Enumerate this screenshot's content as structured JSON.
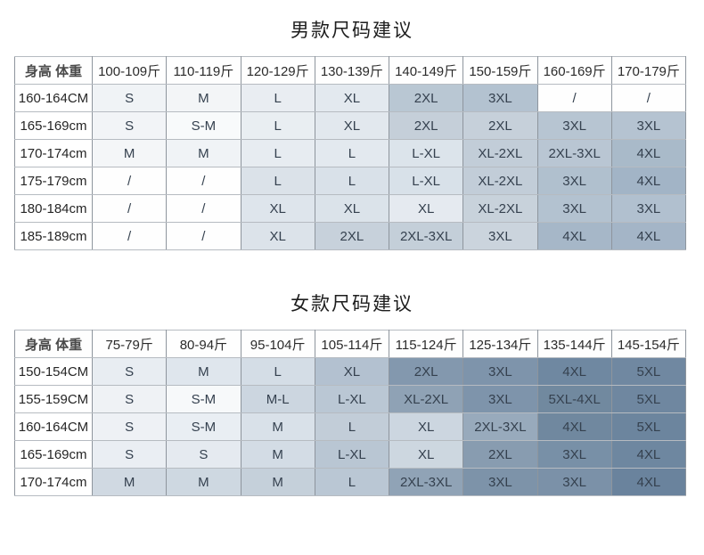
{
  "page": {
    "background": "#ffffff",
    "cell_text_color": "#35414f",
    "border_vertical": "#8e959d",
    "border_horizontal": "#b6bbc1"
  },
  "tables": [
    {
      "title": "男款尺码建议",
      "corner_header": "身高 体重",
      "col_headers": [
        "100-109斤",
        "110-119斤",
        "120-129斤",
        "130-139斤",
        "140-149斤",
        "150-159斤",
        "160-169斤",
        "170-179斤"
      ],
      "rows": [
        {
          "height": "160-164CM",
          "cells": [
            "S",
            "M",
            "L",
            "XL",
            "2XL",
            "3XL",
            "/",
            "/"
          ],
          "bg": [
            "#f0f3f6",
            "#f3f5f7",
            "#e9edf2",
            "#e3e9ef",
            "#b9c7d3",
            "#b3c2d0",
            "#fefefe",
            "#fefefe"
          ]
        },
        {
          "height": "165-169cm",
          "cells": [
            "S",
            "S-M",
            "L",
            "XL",
            "2XL",
            "2XL",
            "3XL",
            "3XL"
          ],
          "bg": [
            "#f2f4f7",
            "#f8fafb",
            "#e9eef2",
            "#e2e8ee",
            "#c5cfd9",
            "#c6d0da",
            "#b7c5d2",
            "#b5c3d1"
          ]
        },
        {
          "height": "170-174cm",
          "cells": [
            "M",
            "M",
            "L",
            "L",
            "L-XL",
            "XL-2XL",
            "2XL-3XL",
            "4XL"
          ],
          "bg": [
            "#f4f6f8",
            "#f0f3f6",
            "#e7ecf1",
            "#e3e9ef",
            "#dce4eb",
            "#c2cdd8",
            "#b9c6d3",
            "#a9bac9"
          ]
        },
        {
          "height": "175-179cm",
          "cells": [
            "/",
            "/",
            "L",
            "L",
            "L-XL",
            "XL-2XL",
            "3XL",
            "4XL"
          ],
          "bg": [
            "#fefefe",
            "#fefefe",
            "#dbe2e9",
            "#d9e1e9",
            "#d8e1e9",
            "#c2cdd8",
            "#b0c0ce",
            "#a2b4c6"
          ]
        },
        {
          "height": "180-184cm",
          "cells": [
            "/",
            "/",
            "XL",
            "XL",
            "XL",
            "XL-2XL",
            "3XL",
            "3XL"
          ],
          "bg": [
            "#fefefe",
            "#fefefe",
            "#dee5ec",
            "#dbe3ea",
            "#e5eaf0",
            "#c8d2db",
            "#b3c2d0",
            "#b1c0cf"
          ]
        },
        {
          "height": "185-189cm",
          "cells": [
            "/",
            "/",
            "XL",
            "2XL",
            "2XL-3XL",
            "3XL",
            "4XL",
            "4XL"
          ],
          "bg": [
            "#fefefe",
            "#fefefe",
            "#dce3ea",
            "#c7d1db",
            "#c4cfd9",
            "#cbd4dd",
            "#a6b7c8",
            "#a4b5c7"
          ]
        }
      ]
    },
    {
      "title": "女款尺码建议",
      "corner_header": "身高 体重",
      "col_headers": [
        "75-79斤",
        "80-94斤",
        "95-104斤",
        "105-114斤",
        "115-124斤",
        "125-134斤",
        "135-144斤",
        "145-154斤"
      ],
      "rows": [
        {
          "height": "150-154CM",
          "cells": [
            "S",
            "M",
            "L",
            "XL",
            "2XL",
            "3XL",
            "4XL",
            "5XL"
          ],
          "bg": [
            "#e8edf2",
            "#dfe6ed",
            "#d4dde6",
            "#b3c1d0",
            "#8398ae",
            "#7e94ab",
            "#6f88a1",
            "#7088a1"
          ]
        },
        {
          "height": "155-159CM",
          "cells": [
            "S",
            "S-M",
            "M-L",
            "L-XL",
            "XL-2XL",
            "3XL",
            "5XL-4XL",
            "5XL"
          ],
          "bg": [
            "#eff2f5",
            "#f7f9fa",
            "#ccd6e0",
            "#bac7d4",
            "#8fa2b5",
            "#7e94ab",
            "#71899f",
            "#6f87a0"
          ]
        },
        {
          "height": "160-164CM",
          "cells": [
            "S",
            "S-M",
            "M",
            "L",
            "XL",
            "2XL-3XL",
            "4XL",
            "5XL"
          ],
          "bg": [
            "#eef1f5",
            "#e9eef3",
            "#d9e1e9",
            "#c2cdd8",
            "#ccd6e0",
            "#98aabc",
            "#70889f",
            "#6c859e"
          ]
        },
        {
          "height": "165-169cm",
          "cells": [
            "S",
            "S",
            "M",
            "L-XL",
            "XL",
            "2XL",
            "3XL",
            "4XL"
          ],
          "bg": [
            "#eaeef3",
            "#e5eaf0",
            "#d3dce5",
            "#b9c6d3",
            "#cdd7e0",
            "#889cb0",
            "#7890a7",
            "#6e87a0"
          ]
        },
        {
          "height": "170-174cm",
          "cells": [
            "M",
            "M",
            "M",
            "L",
            "2XL-3XL",
            "3XL",
            "3XL",
            "4XL"
          ],
          "bg": [
            "#d0d9e2",
            "#ced8e1",
            "#c5d0da",
            "#bac7d4",
            "#90a3b6",
            "#7d93a9",
            "#7b91a8",
            "#6a839d"
          ]
        }
      ]
    }
  ]
}
